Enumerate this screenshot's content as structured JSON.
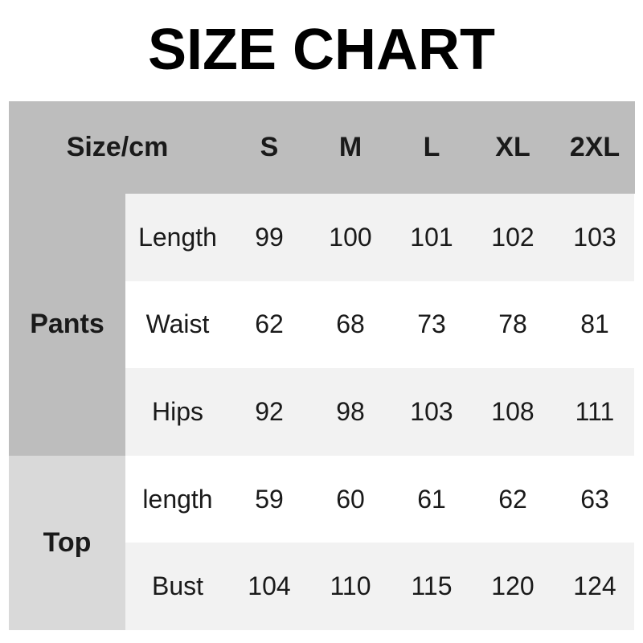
{
  "title": "SIZE CHART",
  "header": {
    "corner": "Size/cm",
    "sizes": [
      "S",
      "M",
      "L",
      "XL",
      "2XL"
    ]
  },
  "groups": [
    {
      "label": "Pants",
      "rows": [
        {
          "label": "Length",
          "values": [
            "99",
            "100",
            "101",
            "102",
            "103"
          ]
        },
        {
          "label": "Waist",
          "values": [
            "62",
            "68",
            "73",
            "78",
            "81"
          ]
        },
        {
          "label": "Hips",
          "values": [
            "92",
            "98",
            "103",
            "108",
            "111"
          ]
        }
      ]
    },
    {
      "label": "Top",
      "rows": [
        {
          "label": "length",
          "values": [
            "59",
            "60",
            "61",
            "62",
            "63"
          ]
        },
        {
          "label": "Bust",
          "values": [
            "104",
            "110",
            "115",
            "120",
            "124"
          ]
        }
      ]
    }
  ],
  "colors": {
    "header_bg": "#bdbdbd",
    "pants_bg": "#bdbdbd",
    "top_bg": "#d9d9d9",
    "row_alt": "#f2f2f2",
    "row_plain": "#ffffff"
  }
}
